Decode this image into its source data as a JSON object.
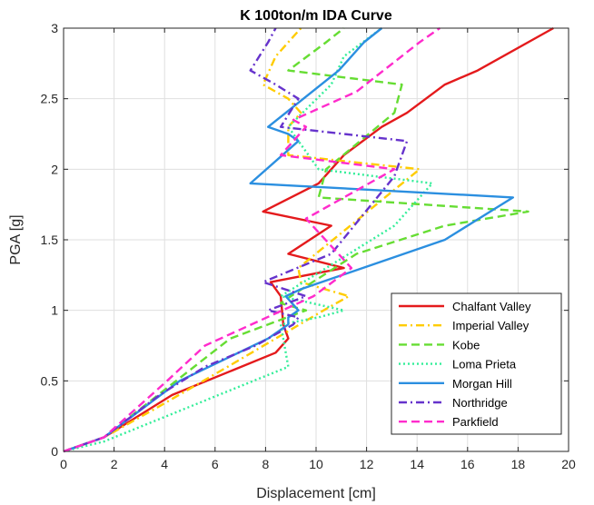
{
  "chart_data": {
    "type": "line",
    "title": "K 100ton/m IDA Curve",
    "xlabel": "Displacement [cm]",
    "ylabel": "PGA [g]",
    "xlim": [
      0,
      20
    ],
    "ylim": [
      0,
      3
    ],
    "xticks": [
      0,
      2,
      4,
      6,
      8,
      10,
      12,
      14,
      16,
      18,
      20
    ],
    "yticks": [
      0,
      0.5,
      1,
      1.5,
      2,
      2.5,
      3
    ],
    "xtick_labels": [
      "0",
      "2",
      "4",
      "6",
      "8",
      "10",
      "12",
      "14",
      "16",
      "18",
      "20"
    ],
    "ytick_labels": [
      "0",
      "0.5",
      "1",
      "1.5",
      "2",
      "2.5",
      "3"
    ],
    "grid": true,
    "legend_position": "bottom-right",
    "series": [
      {
        "name": "Chalfant Valley",
        "color": "#e41a1c",
        "dash": "solid",
        "points": [
          [
            0,
            0
          ],
          [
            1.6,
            0.1
          ],
          [
            4.3,
            0.4
          ],
          [
            8.4,
            0.7
          ],
          [
            8.9,
            0.8
          ],
          [
            8.7,
            0.9
          ],
          [
            8.6,
            1.1
          ],
          [
            8.2,
            1.2
          ],
          [
            11.1,
            1.3
          ],
          [
            8.9,
            1.4
          ],
          [
            10.6,
            1.6
          ],
          [
            7.9,
            1.7
          ],
          [
            10.1,
            1.9
          ],
          [
            11.1,
            2.1
          ],
          [
            12.6,
            2.3
          ],
          [
            13.6,
            2.4
          ],
          [
            15.1,
            2.6
          ],
          [
            16.4,
            2.7
          ],
          [
            19.4,
            3.0
          ]
        ]
      },
      {
        "name": "Imperial Valley",
        "color": "#ffcc00",
        "dash": "dashdot",
        "points": [
          [
            0,
            0
          ],
          [
            1.6,
            0.1
          ],
          [
            3.6,
            0.3
          ],
          [
            6.5,
            0.6
          ],
          [
            10.3,
            1.0
          ],
          [
            11.3,
            1.1
          ],
          [
            9.4,
            1.2
          ],
          [
            9.3,
            1.3
          ],
          [
            14.1,
            2.0
          ],
          [
            8.9,
            2.1
          ],
          [
            8.9,
            2.3
          ],
          [
            9.4,
            2.4
          ],
          [
            8.9,
            2.5
          ],
          [
            7.9,
            2.6
          ],
          [
            8.4,
            2.8
          ],
          [
            9.4,
            3.0
          ]
        ]
      },
      {
        "name": "Kobe",
        "color": "#66dd33",
        "dash": "dashed",
        "points": [
          [
            0,
            0
          ],
          [
            1.6,
            0.1
          ],
          [
            6.6,
            0.8
          ],
          [
            9.6,
            1.0
          ],
          [
            8.6,
            1.05
          ],
          [
            9.0,
            1.1
          ],
          [
            11.6,
            1.4
          ],
          [
            15.1,
            1.6
          ],
          [
            18.4,
            1.7
          ],
          [
            10.1,
            1.8
          ],
          [
            10.4,
            2.0
          ],
          [
            13.1,
            2.4
          ],
          [
            13.4,
            2.6
          ],
          [
            8.9,
            2.7
          ],
          [
            10.4,
            2.9
          ],
          [
            11.1,
            3.0
          ]
        ]
      },
      {
        "name": "Loma Prieta",
        "color": "#33ee99",
        "dash": "dotted",
        "points": [
          [
            0,
            0
          ],
          [
            1.6,
            0.07
          ],
          [
            8.9,
            0.6
          ],
          [
            8.6,
            0.9
          ],
          [
            10.1,
            0.95
          ],
          [
            11.1,
            1.0
          ],
          [
            8.6,
            1.1
          ],
          [
            13.1,
            1.6
          ],
          [
            14.6,
            1.9
          ],
          [
            10.1,
            2.0
          ],
          [
            8.9,
            2.3
          ],
          [
            10.6,
            2.6
          ],
          [
            11.1,
            2.8
          ],
          [
            12.6,
            3.0
          ]
        ]
      },
      {
        "name": "Morgan Hill",
        "color": "#2b8fe0",
        "dash": "solid",
        "points": [
          [
            0,
            0
          ],
          [
            1.6,
            0.1
          ],
          [
            4.6,
            0.5
          ],
          [
            8.1,
            0.8
          ],
          [
            8.9,
            0.9
          ],
          [
            8.9,
            0.95
          ],
          [
            9.3,
            1.0
          ],
          [
            8.8,
            1.1
          ],
          [
            9.4,
            1.15
          ],
          [
            15.1,
            1.5
          ],
          [
            17.8,
            1.8
          ],
          [
            7.4,
            1.9
          ],
          [
            9.3,
            2.2
          ],
          [
            8.9,
            2.25
          ],
          [
            8.1,
            2.3
          ],
          [
            10.9,
            2.7
          ],
          [
            11.9,
            2.9
          ],
          [
            12.6,
            3.0
          ]
        ]
      },
      {
        "name": "Northridge",
        "color": "#6633cc",
        "dash": "dashdot",
        "points": [
          [
            0,
            0
          ],
          [
            1.6,
            0.1
          ],
          [
            3.8,
            0.4
          ],
          [
            5.6,
            0.6
          ],
          [
            7.6,
            0.75
          ],
          [
            9.1,
            0.9
          ],
          [
            9.3,
            0.95
          ],
          [
            8.1,
            1.0
          ],
          [
            9.6,
            1.1
          ],
          [
            7.9,
            1.2
          ],
          [
            10.6,
            1.4
          ],
          [
            13.1,
            1.95
          ],
          [
            13.6,
            2.2
          ],
          [
            8.6,
            2.3
          ],
          [
            9.3,
            2.5
          ],
          [
            8.4,
            2.6
          ],
          [
            7.4,
            2.7
          ],
          [
            8.1,
            2.9
          ],
          [
            8.4,
            3.0
          ]
        ]
      },
      {
        "name": "Parkfield",
        "color": "#ff2bcc",
        "dash": "dashed",
        "points": [
          [
            0,
            0
          ],
          [
            1.6,
            0.1
          ],
          [
            4.1,
            0.5
          ],
          [
            5.6,
            0.75
          ],
          [
            9.9,
            1.1
          ],
          [
            11.4,
            1.3
          ],
          [
            9.6,
            1.65
          ],
          [
            13.1,
            2.0
          ],
          [
            8.6,
            2.1
          ],
          [
            9.6,
            2.3
          ],
          [
            9.1,
            2.35
          ],
          [
            11.6,
            2.55
          ],
          [
            14.1,
            2.9
          ],
          [
            14.9,
            3.0
          ]
        ]
      }
    ]
  }
}
